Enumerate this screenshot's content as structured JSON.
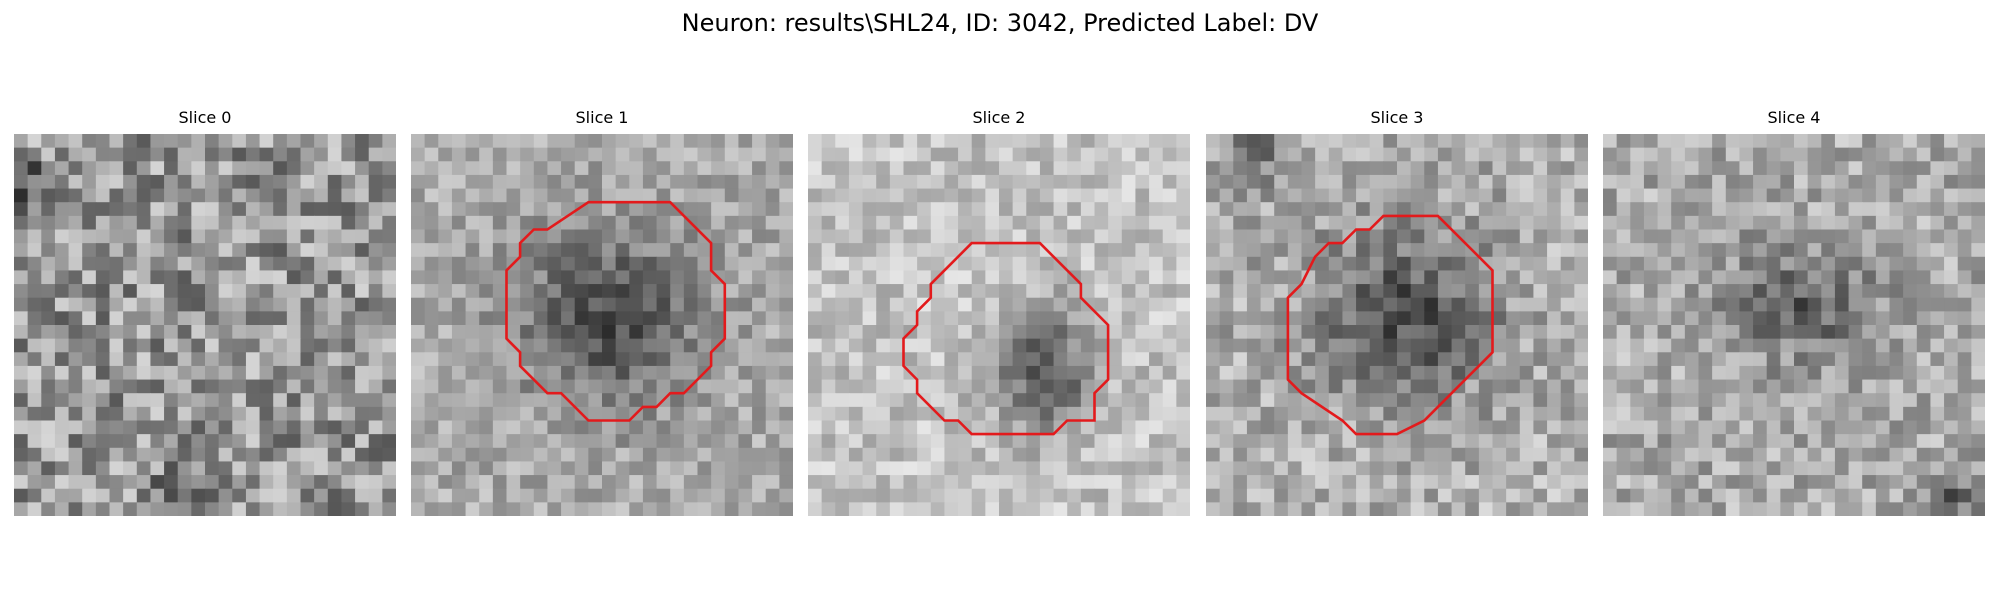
{
  "figure": {
    "title": "Neuron: results\\SHL24, ID: 3042, Predicted Label: DV"
  },
  "panels": [
    {
      "title": "Slice 0",
      "roi_outline": false,
      "dark_blob": "none"
    },
    {
      "title": "Slice 1",
      "roi_outline": true,
      "dark_blob": "large"
    },
    {
      "title": "Slice 2",
      "roi_outline": true,
      "dark_blob": "small"
    },
    {
      "title": "Slice 3",
      "roi_outline": true,
      "dark_blob": "large"
    },
    {
      "title": "Slice 4",
      "roi_outline": false,
      "dark_blob": "medium"
    }
  ],
  "colors": {
    "roi_outline": "#e31a1c",
    "background": "#ffffff"
  }
}
